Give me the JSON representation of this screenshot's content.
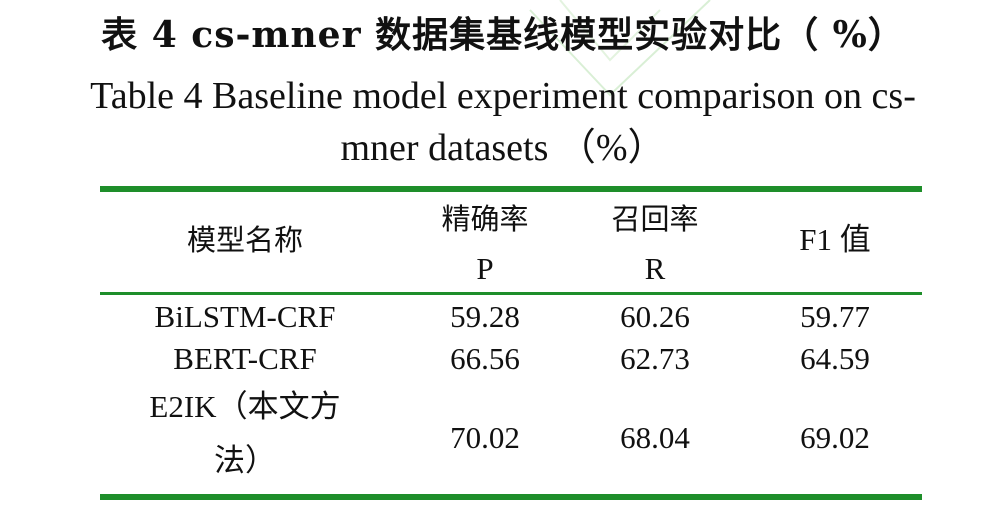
{
  "title_cn": "表 4 cs-mner 数据集基线模型实验对比（ %）",
  "title_en_line1": "Table 4 Baseline model experiment comparison on cs-",
  "title_en_line2": "mner datasets （%）",
  "table": {
    "headers": {
      "model": "模型名称",
      "precision_cn": "精确率",
      "precision_en": "P",
      "recall_cn": "召回率",
      "recall_en": "R",
      "f1": "F1 值"
    },
    "rows": [
      {
        "model": "BiLSTM-CRF",
        "p": "59.28",
        "r": "60.26",
        "f1": "59.77"
      },
      {
        "model": "BERT-CRF",
        "p": "66.56",
        "r": "62.73",
        "f1": "64.59"
      },
      {
        "model_line1": "E2IK（本文方",
        "model_line2": "法）",
        "p": "70.02",
        "r": "68.04",
        "f1": "69.02"
      }
    ]
  },
  "colors": {
    "rule": "#1e8e2a",
    "text": "#111111"
  }
}
